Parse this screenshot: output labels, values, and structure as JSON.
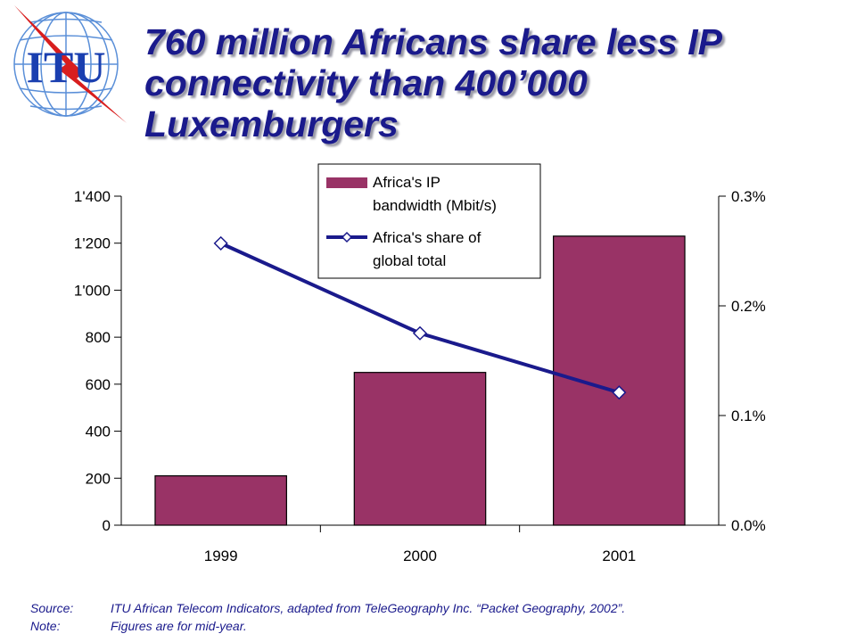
{
  "title_lines": [
    "760 million Africans share less IP",
    "connectivity than 400’000",
    "Luxemburgers"
  ],
  "logo": {
    "text": "ITU",
    "icon": "itu-globe-logo"
  },
  "colors": {
    "title": "#1a1a8c",
    "bar": "#993366",
    "line": "#1a1a8c",
    "footer": "#1a1a8c"
  },
  "chart_data": {
    "type": "bar",
    "categories": [
      "1999",
      "2000",
      "2001"
    ],
    "series": [
      {
        "name": "Africa's IP bandwidth (Mbit/s)",
        "type": "bar",
        "axis": "left",
        "values": [
          210,
          650,
          1230
        ]
      },
      {
        "name": "Africa's share of global total",
        "type": "line",
        "axis": "right",
        "values": [
          0.257,
          0.175,
          0.121
        ]
      }
    ],
    "y_left": {
      "range": [
        0,
        1400
      ],
      "ticks": [
        "0",
        "200",
        "400",
        "600",
        "800",
        "1'000",
        "1'200",
        "1'400"
      ]
    },
    "y_right": {
      "range": [
        0,
        0.3
      ],
      "ticks": [
        "0.0%",
        "0.1%",
        "0.2%",
        "0.3%"
      ]
    },
    "legend": {
      "position": "top",
      "entries": [
        [
          "Africa's IP",
          "bandwidth (Mbit/s)"
        ],
        [
          "Africa's share of",
          "global total"
        ]
      ]
    },
    "grid": false
  },
  "footer": [
    {
      "label": "Source:",
      "text": "ITU African Telecom Indicators, adapted from TeleGeography Inc. “Packet Geography, 2002”."
    },
    {
      "label": "Note:",
      "text": "Figures are for mid-year."
    }
  ]
}
